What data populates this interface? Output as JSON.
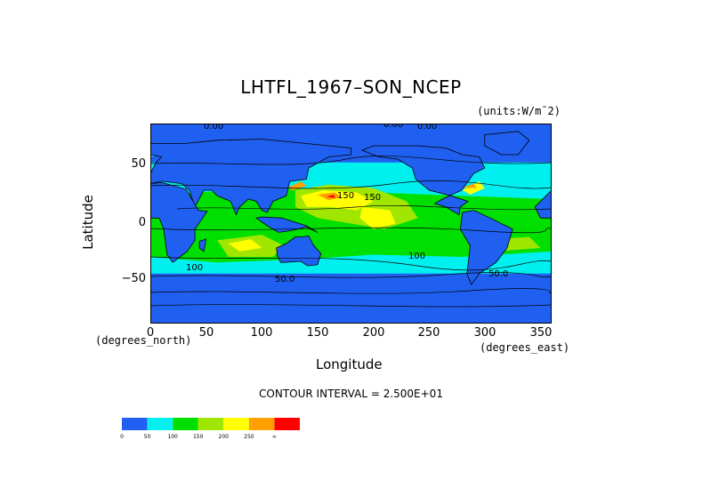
{
  "title": "LHTFL_1967–SON_NCEP",
  "units_note": "(units:W/m¯2)",
  "colors": {
    "c0": "#2060f0",
    "c50": "#00f0f0",
    "c100": "#00e000",
    "c150": "#a0e600",
    "c200": "#ffff00",
    "c250": "#ffa000",
    "c300": "#ff0000",
    "frame": "#000000"
  },
  "x_axis": {
    "label": "Longitude",
    "ticks": [
      "0",
      "50",
      "100",
      "150",
      "200",
      "250",
      "300",
      "350"
    ],
    "unit_note": "(degrees_east)"
  },
  "y_axis": {
    "label": "Latitude",
    "ticks": [
      "50",
      "0",
      "−50"
    ],
    "unit_note": "(degrees_north)"
  },
  "contour_interval_text": "CONTOUR INTERVAL = 2.500E+01",
  "contour_labels": [
    "0.00",
    "0.00",
    "0.00",
    "150",
    "150",
    "100",
    "50.0",
    "50.0",
    "100"
  ],
  "colorbar": {
    "labels": [
      "0",
      "50",
      "100",
      "150",
      "200",
      "250",
      "∞"
    ],
    "colors": [
      "#2060f0",
      "#00f0f0",
      "#00e000",
      "#a0e600",
      "#ffff00",
      "#ffa000",
      "#ff0000"
    ]
  },
  "chart_data": {
    "type": "heatmap",
    "title": "LHTFL_1967–SON_NCEP",
    "xlabel": "Longitude",
    "ylabel": "Latitude",
    "xlim": [
      0,
      360
    ],
    "ylim": [
      -90,
      90
    ],
    "x_ticks": [
      0,
      50,
      100,
      150,
      200,
      250,
      300,
      350
    ],
    "y_ticks": [
      50,
      0,
      -50
    ],
    "contour_interval": 25,
    "levels": [
      0,
      50,
      100,
      150,
      200,
      250,
      300
    ],
    "grid": false
  }
}
